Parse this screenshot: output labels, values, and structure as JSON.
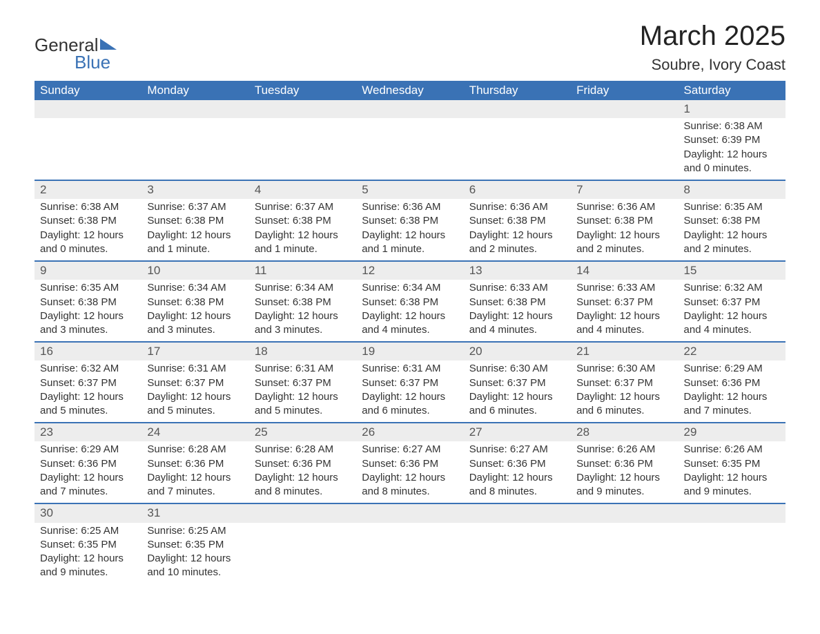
{
  "logo": {
    "word1": "General",
    "word2": "Blue",
    "tri_color": "#3a72b5"
  },
  "header": {
    "month_title": "March 2025",
    "location": "Soubre, Ivory Coast"
  },
  "colors": {
    "header_bg": "#3a72b5",
    "header_fg": "#ffffff",
    "daynum_bg": "#ededed",
    "row_border": "#3a72b5",
    "text": "#333333",
    "background": "#ffffff"
  },
  "typography": {
    "title_fontsize_pt": 30,
    "location_fontsize_pt": 16,
    "header_fontsize_pt": 13,
    "daynum_fontsize_pt": 13,
    "body_fontsize_pt": 11,
    "font_family": "Arial"
  },
  "day_headers": [
    "Sunday",
    "Monday",
    "Tuesday",
    "Wednesday",
    "Thursday",
    "Friday",
    "Saturday"
  ],
  "weeks": [
    [
      null,
      null,
      null,
      null,
      null,
      null,
      {
        "n": "1",
        "sunrise": "Sunrise: 6:38 AM",
        "sunset": "Sunset: 6:39 PM",
        "daylight": "Daylight: 12 hours and 0 minutes."
      }
    ],
    [
      {
        "n": "2",
        "sunrise": "Sunrise: 6:38 AM",
        "sunset": "Sunset: 6:38 PM",
        "daylight": "Daylight: 12 hours and 0 minutes."
      },
      {
        "n": "3",
        "sunrise": "Sunrise: 6:37 AM",
        "sunset": "Sunset: 6:38 PM",
        "daylight": "Daylight: 12 hours and 1 minute."
      },
      {
        "n": "4",
        "sunrise": "Sunrise: 6:37 AM",
        "sunset": "Sunset: 6:38 PM",
        "daylight": "Daylight: 12 hours and 1 minute."
      },
      {
        "n": "5",
        "sunrise": "Sunrise: 6:36 AM",
        "sunset": "Sunset: 6:38 PM",
        "daylight": "Daylight: 12 hours and 1 minute."
      },
      {
        "n": "6",
        "sunrise": "Sunrise: 6:36 AM",
        "sunset": "Sunset: 6:38 PM",
        "daylight": "Daylight: 12 hours and 2 minutes."
      },
      {
        "n": "7",
        "sunrise": "Sunrise: 6:36 AM",
        "sunset": "Sunset: 6:38 PM",
        "daylight": "Daylight: 12 hours and 2 minutes."
      },
      {
        "n": "8",
        "sunrise": "Sunrise: 6:35 AM",
        "sunset": "Sunset: 6:38 PM",
        "daylight": "Daylight: 12 hours and 2 minutes."
      }
    ],
    [
      {
        "n": "9",
        "sunrise": "Sunrise: 6:35 AM",
        "sunset": "Sunset: 6:38 PM",
        "daylight": "Daylight: 12 hours and 3 minutes."
      },
      {
        "n": "10",
        "sunrise": "Sunrise: 6:34 AM",
        "sunset": "Sunset: 6:38 PM",
        "daylight": "Daylight: 12 hours and 3 minutes."
      },
      {
        "n": "11",
        "sunrise": "Sunrise: 6:34 AM",
        "sunset": "Sunset: 6:38 PM",
        "daylight": "Daylight: 12 hours and 3 minutes."
      },
      {
        "n": "12",
        "sunrise": "Sunrise: 6:34 AM",
        "sunset": "Sunset: 6:38 PM",
        "daylight": "Daylight: 12 hours and 4 minutes."
      },
      {
        "n": "13",
        "sunrise": "Sunrise: 6:33 AM",
        "sunset": "Sunset: 6:38 PM",
        "daylight": "Daylight: 12 hours and 4 minutes."
      },
      {
        "n": "14",
        "sunrise": "Sunrise: 6:33 AM",
        "sunset": "Sunset: 6:37 PM",
        "daylight": "Daylight: 12 hours and 4 minutes."
      },
      {
        "n": "15",
        "sunrise": "Sunrise: 6:32 AM",
        "sunset": "Sunset: 6:37 PM",
        "daylight": "Daylight: 12 hours and 4 minutes."
      }
    ],
    [
      {
        "n": "16",
        "sunrise": "Sunrise: 6:32 AM",
        "sunset": "Sunset: 6:37 PM",
        "daylight": "Daylight: 12 hours and 5 minutes."
      },
      {
        "n": "17",
        "sunrise": "Sunrise: 6:31 AM",
        "sunset": "Sunset: 6:37 PM",
        "daylight": "Daylight: 12 hours and 5 minutes."
      },
      {
        "n": "18",
        "sunrise": "Sunrise: 6:31 AM",
        "sunset": "Sunset: 6:37 PM",
        "daylight": "Daylight: 12 hours and 5 minutes."
      },
      {
        "n": "19",
        "sunrise": "Sunrise: 6:31 AM",
        "sunset": "Sunset: 6:37 PM",
        "daylight": "Daylight: 12 hours and 6 minutes."
      },
      {
        "n": "20",
        "sunrise": "Sunrise: 6:30 AM",
        "sunset": "Sunset: 6:37 PM",
        "daylight": "Daylight: 12 hours and 6 minutes."
      },
      {
        "n": "21",
        "sunrise": "Sunrise: 6:30 AM",
        "sunset": "Sunset: 6:37 PM",
        "daylight": "Daylight: 12 hours and 6 minutes."
      },
      {
        "n": "22",
        "sunrise": "Sunrise: 6:29 AM",
        "sunset": "Sunset: 6:36 PM",
        "daylight": "Daylight: 12 hours and 7 minutes."
      }
    ],
    [
      {
        "n": "23",
        "sunrise": "Sunrise: 6:29 AM",
        "sunset": "Sunset: 6:36 PM",
        "daylight": "Daylight: 12 hours and 7 minutes."
      },
      {
        "n": "24",
        "sunrise": "Sunrise: 6:28 AM",
        "sunset": "Sunset: 6:36 PM",
        "daylight": "Daylight: 12 hours and 7 minutes."
      },
      {
        "n": "25",
        "sunrise": "Sunrise: 6:28 AM",
        "sunset": "Sunset: 6:36 PM",
        "daylight": "Daylight: 12 hours and 8 minutes."
      },
      {
        "n": "26",
        "sunrise": "Sunrise: 6:27 AM",
        "sunset": "Sunset: 6:36 PM",
        "daylight": "Daylight: 12 hours and 8 minutes."
      },
      {
        "n": "27",
        "sunrise": "Sunrise: 6:27 AM",
        "sunset": "Sunset: 6:36 PM",
        "daylight": "Daylight: 12 hours and 8 minutes."
      },
      {
        "n": "28",
        "sunrise": "Sunrise: 6:26 AM",
        "sunset": "Sunset: 6:36 PM",
        "daylight": "Daylight: 12 hours and 9 minutes."
      },
      {
        "n": "29",
        "sunrise": "Sunrise: 6:26 AM",
        "sunset": "Sunset: 6:35 PM",
        "daylight": "Daylight: 12 hours and 9 minutes."
      }
    ],
    [
      {
        "n": "30",
        "sunrise": "Sunrise: 6:25 AM",
        "sunset": "Sunset: 6:35 PM",
        "daylight": "Daylight: 12 hours and 9 minutes."
      },
      {
        "n": "31",
        "sunrise": "Sunrise: 6:25 AM",
        "sunset": "Sunset: 6:35 PM",
        "daylight": "Daylight: 12 hours and 10 minutes."
      },
      null,
      null,
      null,
      null,
      null
    ]
  ]
}
